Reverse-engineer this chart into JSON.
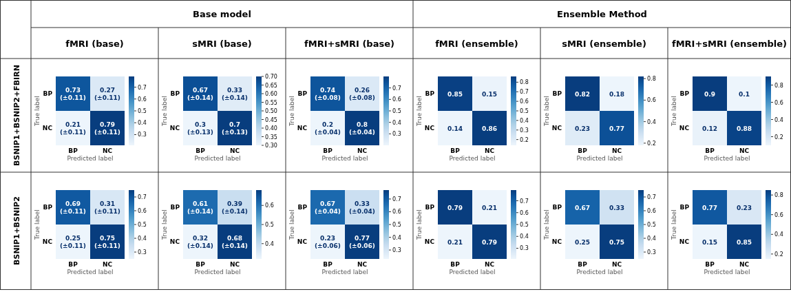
{
  "chart_data": [
    {
      "type": "other",
      "annotations": [
        "Base model",
        "Ensemble Method",
        "fMRI (base)",
        "sMRI (base)",
        "fMRI+sMRI (base)",
        "fMRI (ensemble)",
        "sMRI (ensemble)",
        "fMRI+sMRI (ensemble)",
        "BSNIP1+BSNIP2+FBIRN",
        "BSNIP1+BSNIP2"
      ]
    },
    {
      "type": "heatmap",
      "categories": [
        "BP",
        "NC"
      ],
      "y_categories": [
        "BP",
        "NC"
      ],
      "xlabel": "Predicted label",
      "ylabel": "True label",
      "cells": [
        [
          0.73,
          0.27
        ],
        [
          0.21,
          0.79
        ]
      ],
      "cell_labels": [
        [
          "0.73\n(±0.11)",
          "0.27\n(±0.11)"
        ],
        [
          "0.21\n(±0.11)",
          "0.79\n(±0.11)"
        ]
      ],
      "clim": [
        0.21,
        0.79
      ],
      "cticks": [
        0.3,
        0.4,
        0.5,
        0.6,
        0.7
      ]
    },
    {
      "type": "heatmap",
      "categories": [
        "BP",
        "NC"
      ],
      "y_categories": [
        "BP",
        "NC"
      ],
      "xlabel": "Predicted label",
      "ylabel": "True label",
      "cells": [
        [
          0.67,
          0.33
        ],
        [
          0.3,
          0.7
        ]
      ],
      "cell_labels": [
        [
          "0.67\n(±0.14)",
          "0.33\n(±0.14)"
        ],
        [
          "0.3\n(±0.13)",
          "0.7\n(±0.13)"
        ]
      ],
      "clim": [
        0.3,
        0.7
      ],
      "cticks": [
        {
          "value": 0.3,
          "label": "0.30"
        },
        0.35,
        {
          "value": 0.4,
          "label": "0.40"
        },
        0.45,
        {
          "value": 0.5,
          "label": "0.50"
        },
        0.55,
        {
          "value": 0.6,
          "label": "0.60"
        },
        0.65,
        {
          "value": 0.7,
          "label": "0.70"
        }
      ]
    },
    {
      "type": "heatmap",
      "categories": [
        "BP",
        "NC"
      ],
      "y_categories": [
        "BP",
        "NC"
      ],
      "xlabel": "Predicted label",
      "ylabel": "True label",
      "cells": [
        [
          0.74,
          0.26
        ],
        [
          0.2,
          0.8
        ]
      ],
      "cell_labels": [
        [
          "0.74\n(±0.08)",
          "0.26\n(±0.08)"
        ],
        [
          "0.2\n(±0.04)",
          "0.8\n(±0.04)"
        ]
      ],
      "clim": [
        0.2,
        0.8
      ],
      "cticks": [
        0.3,
        0.4,
        0.5,
        0.6,
        0.7
      ]
    },
    {
      "type": "heatmap",
      "categories": [
        "BP",
        "NC"
      ],
      "y_categories": [
        "BP",
        "NC"
      ],
      "xlabel": "Predicted label",
      "ylabel": "True label",
      "cells": [
        [
          0.85,
          0.15
        ],
        [
          0.14,
          0.86
        ]
      ],
      "data_labels": true,
      "clim": [
        0.14,
        0.86
      ],
      "cticks": [
        0.2,
        0.3,
        0.4,
        0.5,
        0.6,
        0.7,
        0.8
      ]
    },
    {
      "type": "heatmap",
      "categories": [
        "BP",
        "NC"
      ],
      "y_categories": [
        "BP",
        "NC"
      ],
      "xlabel": "Predicted label",
      "ylabel": "True label",
      "cells": [
        [
          0.82,
          0.18
        ],
        [
          0.23,
          0.77
        ]
      ],
      "data_labels": true,
      "clim": [
        0.18,
        0.82
      ],
      "cticks": [
        0.2,
        0.4,
        0.6,
        0.8
      ]
    },
    {
      "type": "heatmap",
      "categories": [
        "BP",
        "NC"
      ],
      "y_categories": [
        "BP",
        "NC"
      ],
      "xlabel": "Predicted label",
      "ylabel": "True label",
      "cells": [
        [
          0.9,
          0.1
        ],
        [
          0.12,
          0.88
        ]
      ],
      "data_labels": true,
      "clim": [
        0.1,
        0.9
      ],
      "cticks": [
        0.2,
        0.4,
        0.6,
        0.8
      ]
    },
    {
      "type": "heatmap",
      "categories": [
        "BP",
        "NC"
      ],
      "y_categories": [
        "BP",
        "NC"
      ],
      "xlabel": "Predicted label",
      "ylabel": "True label",
      "cells": [
        [
          0.69,
          0.31
        ],
        [
          0.25,
          0.75
        ]
      ],
      "cell_labels": [
        [
          "0.69\n(±0.11)",
          "0.31\n(±0.11)"
        ],
        [
          "0.25\n(±0.11)",
          "0.75\n(±0.11)"
        ]
      ],
      "clim": [
        0.25,
        0.75
      ],
      "cticks": [
        0.3,
        0.4,
        0.5,
        0.6,
        0.7
      ]
    },
    {
      "type": "heatmap",
      "categories": [
        "BP",
        "NC"
      ],
      "y_categories": [
        "BP",
        "NC"
      ],
      "xlabel": "Predicted label",
      "ylabel": "True label",
      "cells": [
        [
          0.61,
          0.39
        ],
        [
          0.32,
          0.68
        ]
      ],
      "cell_labels": [
        [
          "0.61\n(±0.14)",
          "0.39\n(±0.14)"
        ],
        [
          "0.32\n(±0.14)",
          "0.68\n(±0.14)"
        ]
      ],
      "clim": [
        0.32,
        0.68
      ],
      "cticks": [
        0.4,
        0.5,
        0.6
      ]
    },
    {
      "type": "heatmap",
      "categories": [
        "BP",
        "NC"
      ],
      "y_categories": [
        "BP",
        "NC"
      ],
      "xlabel": "Predicted label",
      "ylabel": "True label",
      "cells": [
        [
          0.67,
          0.33
        ],
        [
          0.23,
          0.77
        ]
      ],
      "cell_labels": [
        [
          "0.67\n(±0.04)",
          "0.33\n(±0.04)"
        ],
        [
          "0.23\n(±0.06)",
          "0.77\n(±0.06)"
        ]
      ],
      "clim": [
        0.23,
        0.77
      ],
      "cticks": [
        0.3,
        0.4,
        0.5,
        0.6,
        0.7
      ]
    },
    {
      "type": "heatmap",
      "categories": [
        "BP",
        "NC"
      ],
      "y_categories": [
        "BP",
        "NC"
      ],
      "xlabel": "Predicted label",
      "ylabel": "True label",
      "cells": [
        [
          0.79,
          0.21
        ],
        [
          0.21,
          0.79
        ]
      ],
      "data_labels": true,
      "clim": [
        0.21,
        0.79
      ],
      "cticks": [
        0.3,
        0.4,
        0.5,
        0.6,
        0.7
      ]
    },
    {
      "type": "heatmap",
      "categories": [
        "BP",
        "NC"
      ],
      "y_categories": [
        "BP",
        "NC"
      ],
      "xlabel": "Predicted label",
      "ylabel": "True label",
      "cells": [
        [
          0.67,
          0.33
        ],
        [
          0.25,
          0.75
        ]
      ],
      "data_labels": true,
      "clim": [
        0.25,
        0.75
      ],
      "cticks": [
        0.3,
        0.4,
        0.5,
        0.6,
        0.7
      ]
    },
    {
      "type": "heatmap",
      "categories": [
        "BP",
        "NC"
      ],
      "y_categories": [
        "BP",
        "NC"
      ],
      "xlabel": "Predicted label",
      "ylabel": "True label",
      "cells": [
        [
          0.77,
          0.23
        ],
        [
          0.15,
          0.85
        ]
      ],
      "data_labels": true,
      "clim": [
        0.15,
        0.85
      ],
      "cticks": [
        0.2,
        0.4,
        0.6,
        0.8
      ]
    }
  ]
}
